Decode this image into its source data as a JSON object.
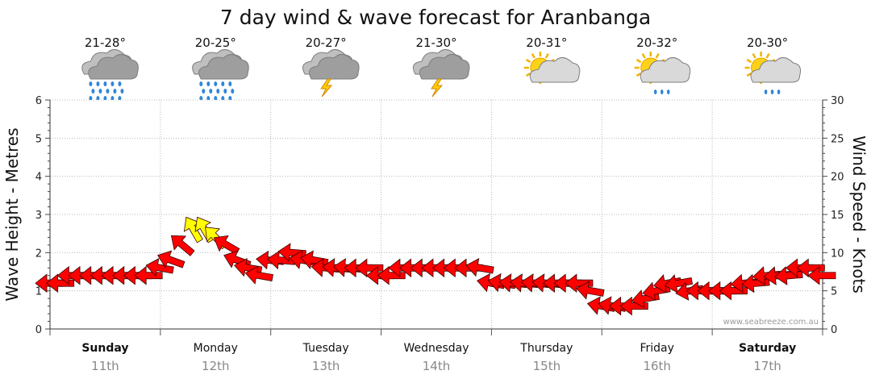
{
  "chart_data": {
    "type": "line",
    "title": "7 day wind & wave forecast for Aranbanga",
    "ylabel_left": "Wave Height - Metres",
    "ylabel_right": "Wind Speed - Knots",
    "ylim_left": [
      0,
      6
    ],
    "ylim_right": [
      0,
      30
    ],
    "yticks_left": [
      "0",
      "1",
      "2",
      "3",
      "4",
      "5",
      "6"
    ],
    "yticks_right": [
      "0",
      "5",
      "10",
      "15",
      "20",
      "25",
      "30"
    ],
    "watermark": "www.seabreeze.com.au",
    "grid": true,
    "days": [
      {
        "day": "Sunday",
        "date": "11th",
        "temp": "21-28°",
        "icon": "rain-icon",
        "bold": true
      },
      {
        "day": "Monday",
        "date": "12th",
        "temp": "20-25°",
        "icon": "rain-icon",
        "bold": false
      },
      {
        "day": "Tuesday",
        "date": "13th",
        "temp": "20-27°",
        "icon": "storm-icon",
        "bold": false
      },
      {
        "day": "Wednesday",
        "date": "14th",
        "temp": "21-30°",
        "icon": "storm-icon",
        "bold": false
      },
      {
        "day": "Thursday",
        "date": "15th",
        "temp": "20-31°",
        "icon": "partly-cloudy-icon",
        "bold": false
      },
      {
        "day": "Friday",
        "date": "16th",
        "temp": "20-32°",
        "icon": "sun-showers-icon",
        "bold": false
      },
      {
        "day": "Saturday",
        "date": "17th",
        "temp": "20-30°",
        "icon": "sun-showers-icon",
        "bold": true
      }
    ],
    "wind_series": {
      "name": "Wind Speed",
      "x_day": [
        0.0,
        0.1,
        0.2,
        0.3,
        0.4,
        0.5,
        0.6,
        0.7,
        0.8,
        0.9,
        1.0,
        1.1,
        1.2,
        1.3,
        1.4,
        1.5,
        1.6,
        1.7,
        1.8,
        1.9,
        2.0,
        2.1,
        2.2,
        2.3,
        2.4,
        2.5,
        2.6,
        2.7,
        2.8,
        2.9,
        3.0,
        3.1,
        3.2,
        3.3,
        3.4,
        3.5,
        3.6,
        3.7,
        3.8,
        3.9,
        4.0,
        4.1,
        4.2,
        4.3,
        4.4,
        4.5,
        4.6,
        4.7,
        4.8,
        4.9,
        5.0,
        5.1,
        5.2,
        5.3,
        5.4,
        5.5,
        5.6,
        5.7,
        5.8,
        5.9,
        6.0,
        6.1,
        6.2,
        6.3,
        6.4,
        6.5,
        6.6,
        6.7,
        6.8,
        6.9,
        7.0
      ],
      "knots": [
        6,
        6,
        7,
        7,
        7,
        7,
        7,
        7,
        7,
        7,
        8,
        9,
        11,
        13,
        13,
        12,
        11,
        9,
        8,
        7,
        9,
        9,
        10,
        9,
        9,
        8,
        8,
        8,
        8,
        8,
        7,
        7,
        8,
        8,
        8,
        8,
        8,
        8,
        8,
        8,
        6,
        6,
        6,
        6,
        6,
        6,
        6,
        6,
        6,
        5,
        3,
        3,
        3,
        3,
        4,
        5,
        6,
        6,
        5,
        5,
        5,
        5,
        5,
        6,
        6,
        7,
        7,
        7,
        8,
        8,
        7
      ],
      "direction_deg": [
        90,
        90,
        90,
        90,
        90,
        90,
        90,
        90,
        90,
        90,
        100,
        110,
        130,
        150,
        150,
        135,
        120,
        110,
        100,
        100,
        95,
        95,
        95,
        100,
        100,
        95,
        95,
        95,
        90,
        90,
        90,
        90,
        90,
        90,
        90,
        90,
        90,
        90,
        90,
        100,
        100,
        100,
        95,
        95,
        95,
        95,
        90,
        90,
        90,
        100,
        100,
        100,
        90,
        90,
        80,
        80,
        80,
        80,
        80,
        90,
        90,
        90,
        90,
        85,
        85,
        85,
        85,
        85,
        90,
        90,
        90
      ],
      "colors": {
        "normal": "#ff0000",
        "high": "#ffff00",
        "high_threshold_knots": 12
      }
    }
  }
}
